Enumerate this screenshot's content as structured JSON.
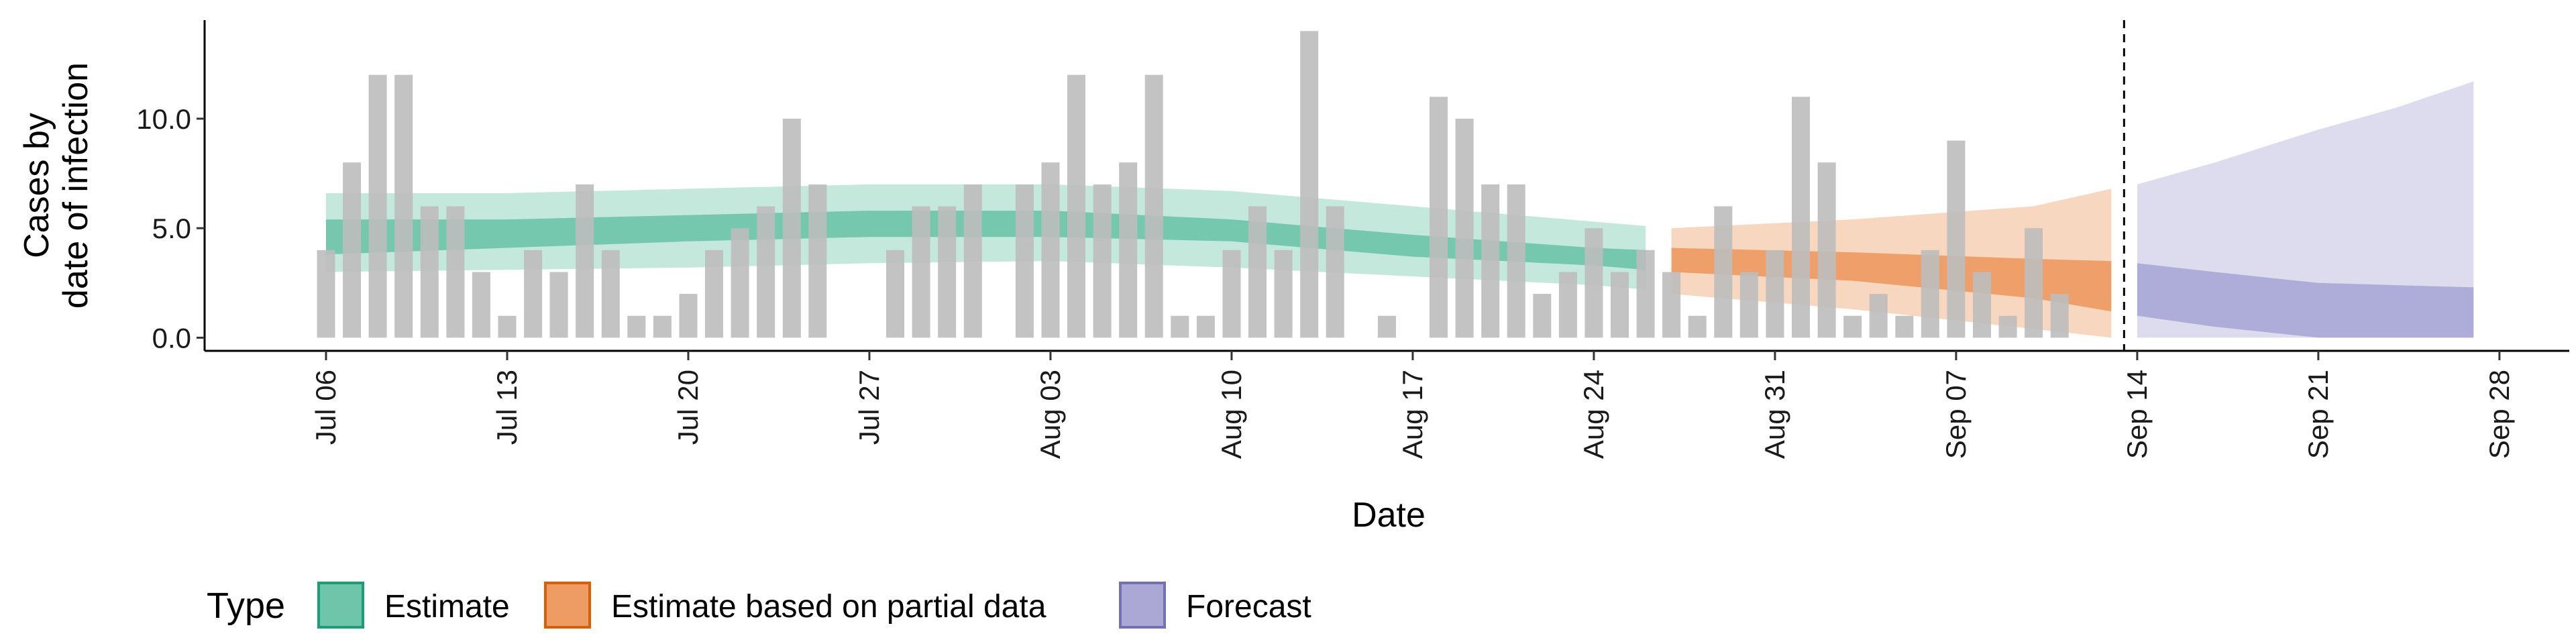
{
  "chart_data": {
    "type": "bar",
    "xlabel": "Date",
    "ylabel_lines": [
      "Cases by",
      "date of infection"
    ],
    "ylim": [
      -0.6,
      14.5
    ],
    "xlim": [
      "2020-07-06",
      "2020-09-28"
    ],
    "grid": false,
    "y_ticks": [
      {
        "value": 0,
        "label": "0.0"
      },
      {
        "value": 5,
        "label": "5.0"
      },
      {
        "value": 10,
        "label": "10.0"
      }
    ],
    "x_ticks": [
      {
        "date": "2020-07-06",
        "label": "Jul 06"
      },
      {
        "date": "2020-07-13",
        "label": "Jul 13"
      },
      {
        "date": "2020-07-20",
        "label": "Jul 20"
      },
      {
        "date": "2020-07-27",
        "label": "Jul 27"
      },
      {
        "date": "2020-08-03",
        "label": "Aug 03"
      },
      {
        "date": "2020-08-10",
        "label": "Aug 10"
      },
      {
        "date": "2020-08-17",
        "label": "Aug 17"
      },
      {
        "date": "2020-08-24",
        "label": "Aug 24"
      },
      {
        "date": "2020-08-31",
        "label": "Aug 31"
      },
      {
        "date": "2020-09-07",
        "label": "Sep 07"
      },
      {
        "date": "2020-09-14",
        "label": "Sep 14"
      },
      {
        "date": "2020-09-21",
        "label": "Sep 21"
      },
      {
        "date": "2020-09-28",
        "label": "Sep 28"
      }
    ],
    "cases": {
      "color": "#bdbdbd",
      "dates": [
        "2020-07-06",
        "2020-07-07",
        "2020-07-08",
        "2020-07-09",
        "2020-07-10",
        "2020-07-11",
        "2020-07-12",
        "2020-07-13",
        "2020-07-14",
        "2020-07-15",
        "2020-07-16",
        "2020-07-17",
        "2020-07-18",
        "2020-07-19",
        "2020-07-20",
        "2020-07-21",
        "2020-07-22",
        "2020-07-23",
        "2020-07-24",
        "2020-07-25",
        "2020-07-26",
        "2020-07-27",
        "2020-07-28",
        "2020-07-29",
        "2020-07-30",
        "2020-07-31",
        "2020-08-01",
        "2020-08-02",
        "2020-08-03",
        "2020-08-04",
        "2020-08-05",
        "2020-08-06",
        "2020-08-07",
        "2020-08-08",
        "2020-08-09",
        "2020-08-10",
        "2020-08-11",
        "2020-08-12",
        "2020-08-13",
        "2020-08-14",
        "2020-08-15",
        "2020-08-16",
        "2020-08-17",
        "2020-08-18",
        "2020-08-19",
        "2020-08-20",
        "2020-08-21",
        "2020-08-22",
        "2020-08-23",
        "2020-08-24",
        "2020-08-25",
        "2020-08-26",
        "2020-08-27",
        "2020-08-28",
        "2020-08-29",
        "2020-08-30",
        "2020-08-31",
        "2020-09-01",
        "2020-09-02",
        "2020-09-03",
        "2020-09-04",
        "2020-09-05",
        "2020-09-06",
        "2020-09-07",
        "2020-09-08",
        "2020-09-09",
        "2020-09-10",
        "2020-09-11",
        "2020-09-12",
        "2020-09-13"
      ],
      "values": [
        4,
        8,
        12,
        12,
        6,
        6,
        3,
        1,
        4,
        3,
        7,
        4,
        1,
        1,
        2,
        4,
        5,
        6,
        10,
        7,
        0,
        0,
        4,
        6,
        6,
        7,
        0,
        7,
        8,
        12,
        7,
        8,
        12,
        1,
        1,
        4,
        6,
        4,
        14,
        6,
        0,
        1,
        0,
        11,
        10,
        7,
        7,
        2,
        3,
        5,
        3,
        4,
        3,
        1,
        6,
        3,
        4,
        11,
        8,
        1,
        2,
        1,
        4,
        9,
        3,
        1,
        5,
        2,
        0,
        0
      ]
    },
    "series": [
      {
        "name": "Estimate",
        "color": "#66c2a5",
        "edge": "#1b9e77",
        "dates": [
          "2020-07-06",
          "2020-07-13",
          "2020-07-20",
          "2020-07-27",
          "2020-08-03",
          "2020-08-10",
          "2020-08-17",
          "2020-08-24",
          "2020-08-26"
        ],
        "inner_lower": [
          3.8,
          4.1,
          4.4,
          4.6,
          4.6,
          4.4,
          3.7,
          3.3,
          3.1
        ],
        "inner_upper": [
          5.4,
          5.4,
          5.6,
          5.8,
          5.8,
          5.4,
          4.7,
          4.1,
          4.0
        ],
        "outer_lower": [
          3.0,
          3.1,
          3.2,
          3.4,
          3.5,
          3.2,
          2.8,
          2.4,
          2.2
        ],
        "outer_upper": [
          6.6,
          6.6,
          6.8,
          7.0,
          7.0,
          6.7,
          6.0,
          5.3,
          5.1
        ]
      },
      {
        "name": "Estimate based on partial data",
        "color": "#ed975b",
        "edge": "#d95f02",
        "dates": [
          "2020-08-27",
          "2020-09-03",
          "2020-09-10",
          "2020-09-13"
        ],
        "inner_lower": [
          3.0,
          2.6,
          1.8,
          1.2
        ],
        "inner_upper": [
          4.1,
          3.9,
          3.6,
          3.5
        ],
        "outer_lower": [
          2.0,
          1.3,
          0.4,
          0.0
        ],
        "outer_upper": [
          5.0,
          5.4,
          6.0,
          6.8
        ]
      },
      {
        "name": "Forecast",
        "color": "#a6a3d3",
        "edge": "#7570b3",
        "dates": [
          "2020-09-14",
          "2020-09-17",
          "2020-09-21",
          "2020-09-24",
          "2020-09-27"
        ],
        "inner_lower": [
          1.0,
          0.5,
          0.0,
          0.0,
          0.0
        ],
        "inner_upper": [
          3.4,
          3.0,
          2.5,
          2.4,
          2.3
        ],
        "outer_lower": [
          0.0,
          0.0,
          0.0,
          0.0,
          0.0
        ],
        "outer_upper": [
          7.0,
          8.0,
          9.5,
          10.5,
          11.7
        ]
      }
    ],
    "vline_date": "2020-09-13",
    "legend": {
      "title": "Type",
      "position": "bottom-left",
      "items": [
        "Estimate",
        "Estimate based on partial data",
        "Forecast"
      ]
    }
  }
}
